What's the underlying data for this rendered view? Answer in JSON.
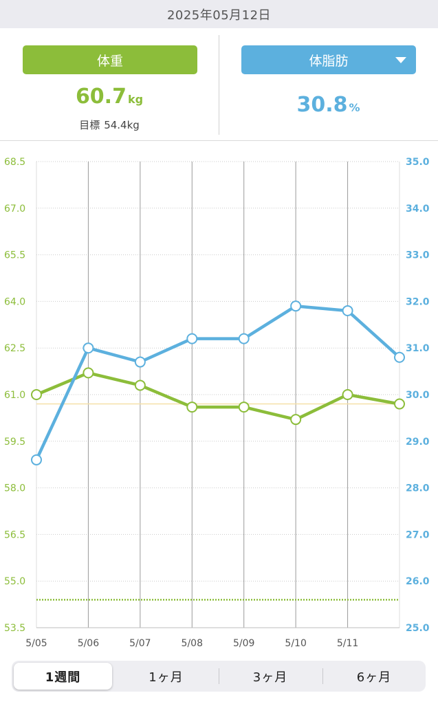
{
  "header": {
    "date": "2025年05月12日"
  },
  "metrics": {
    "weight": {
      "label": "体重",
      "value": "60.7",
      "unit": "kg",
      "target_label": "目標",
      "target_value": "54.4kg"
    },
    "body_fat": {
      "label": "体脂肪",
      "value": "30.8",
      "unit": "%",
      "dropdown_icon": "caret-down-icon"
    }
  },
  "colors": {
    "weight": "#8cbd3a",
    "body_fat": "#5cb0de",
    "weight_target_line": "#8cbd3a",
    "current_weight_line": "#f5e0a8"
  },
  "chart_data": {
    "type": "line",
    "x": [
      "5/05",
      "5/06",
      "5/07",
      "5/08",
      "5/09",
      "5/10",
      "5/11",
      "5/12"
    ],
    "x_tick_labels": [
      "5/05",
      "5/06",
      "5/07",
      "5/08",
      "5/09",
      "5/10",
      "5/11"
    ],
    "y_left": {
      "ticks": [
        "68.5",
        "67.0",
        "65.5",
        "64.0",
        "62.5",
        "61.0",
        "59.5",
        "58.0",
        "56.5",
        "55.0",
        "53.5"
      ],
      "range": [
        53.5,
        68.5
      ]
    },
    "y_right": {
      "ticks": [
        "35.0",
        "34.0",
        "33.0",
        "32.0",
        "31.0",
        "30.0",
        "29.0",
        "28.0",
        "27.0",
        "26.0",
        "25.0"
      ],
      "range": [
        25.0,
        35.0
      ]
    },
    "series": [
      {
        "axis": "left",
        "color": "#8cbd3a",
        "values": [
          61.0,
          61.7,
          61.3,
          60.6,
          60.6,
          60.2,
          61.0,
          60.7
        ]
      },
      {
        "axis": "right",
        "color": "#5cb0de",
        "values": [
          28.6,
          31.0,
          30.7,
          31.2,
          31.2,
          31.9,
          31.8,
          30.8
        ]
      }
    ],
    "reference_lines": [
      {
        "axis": "left",
        "value": 60.7,
        "style": "solid",
        "color": "#f5e0a8"
      },
      {
        "axis": "left",
        "value": 54.4,
        "style": "dotted",
        "color": "#8cbd3a"
      }
    ],
    "grid": true
  },
  "period": {
    "options": [
      "1週間",
      "1ヶ月",
      "3ヶ月",
      "6ヶ月"
    ],
    "selected": 0
  }
}
